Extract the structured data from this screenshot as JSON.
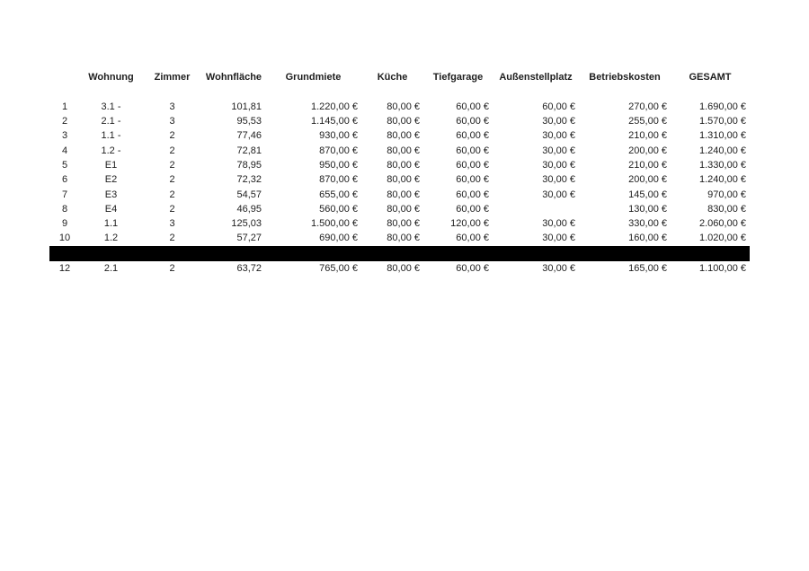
{
  "page": {
    "background_color": "#ffffff",
    "text_color": "#1e1e1e"
  },
  "table": {
    "columns": [
      "",
      "Wohnung",
      "Zimmer",
      "Wohnfläche",
      "Grundmiete",
      "Küche",
      "Tiefgarage",
      "Außenstellplatz",
      "Betriebskosten",
      "GESAMT"
    ],
    "redaction_color": "#000000",
    "rows": [
      {
        "cells": [
          "1",
          "3.1 -",
          "3",
          "101,81",
          "1.220,00 €",
          "80,00 €",
          "60,00 €",
          "60,00 €",
          "270,00 €",
          "1.690,00 €"
        ]
      },
      {
        "cells": [
          "2",
          "2.1 -",
          "3",
          "95,53",
          "1.145,00 €",
          "80,00 €",
          "60,00 €",
          "30,00 €",
          "255,00 €",
          "1.570,00 €"
        ]
      },
      {
        "cells": [
          "3",
          "1.1 -",
          "2",
          "77,46",
          "930,00 €",
          "80,00 €",
          "60,00 €",
          "30,00 €",
          "210,00 €",
          "1.310,00 €"
        ]
      },
      {
        "cells": [
          "4",
          "1.2 -",
          "2",
          "72,81",
          "870,00 €",
          "80,00 €",
          "60,00 €",
          "30,00 €",
          "200,00 €",
          "1.240,00 €"
        ]
      },
      {
        "cells": [
          "5",
          "E1",
          "2",
          "78,95",
          "950,00 €",
          "80,00 €",
          "60,00 €",
          "30,00 €",
          "210,00 €",
          "1.330,00 €"
        ]
      },
      {
        "cells": [
          "6",
          "E2",
          "2",
          "72,32",
          "870,00 €",
          "80,00 €",
          "60,00 €",
          "30,00 €",
          "200,00 €",
          "1.240,00 €"
        ]
      },
      {
        "cells": [
          "7",
          "E3",
          "2",
          "54,57",
          "655,00 €",
          "80,00 €",
          "60,00 €",
          "30,00 €",
          "145,00 €",
          "970,00 €"
        ]
      },
      {
        "cells": [
          "8",
          "E4",
          "2",
          "46,95",
          "560,00 €",
          "80,00 €",
          "60,00 €",
          "",
          "130,00 €",
          "830,00 €"
        ]
      },
      {
        "cells": [
          "9",
          "1.1",
          "3",
          "125,03",
          "1.500,00 €",
          "80,00 €",
          "120,00 €",
          "30,00 €",
          "330,00 €",
          "2.060,00 €"
        ]
      },
      {
        "cells": [
          "10",
          "1.2",
          "2",
          "57,27",
          "690,00 €",
          "80,00 €",
          "60,00 €",
          "30,00 €",
          "160,00 €",
          "1.020,00 €"
        ]
      },
      {
        "redacted": true
      },
      {
        "cells": [
          "12",
          "2.1",
          "2",
          "63,72",
          "765,00 €",
          "80,00 €",
          "60,00 €",
          "30,00 €",
          "165,00 €",
          "1.100,00 €"
        ]
      }
    ]
  }
}
